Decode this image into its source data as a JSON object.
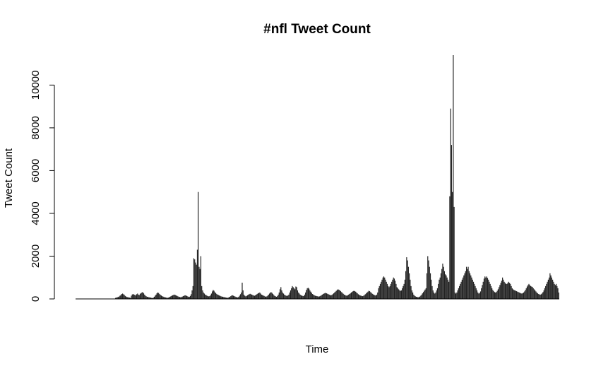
{
  "chart_data": {
    "type": "bar",
    "title": "#nfl Tweet Count",
    "xlabel": "Time",
    "ylabel": "Tweet Count",
    "ylim": [
      0,
      11400
    ],
    "yticks": [
      0,
      2000,
      4000,
      6000,
      8000,
      10000
    ],
    "grid": false,
    "legend": "none",
    "bar_color": "#222222",
    "series": [
      {
        "values": [
          0,
          0,
          0,
          0,
          0,
          0,
          0,
          0,
          0,
          0,
          0,
          0,
          0,
          0,
          0,
          0,
          0,
          0,
          0,
          0,
          0,
          0,
          0,
          0,
          0,
          0,
          0,
          0,
          0,
          0,
          0,
          0,
          0,
          0,
          0,
          0,
          0,
          0,
          0,
          0,
          0,
          0,
          0,
          0,
          0,
          50,
          60,
          80,
          90,
          110,
          150,
          180,
          230,
          250,
          220,
          190,
          140,
          110,
          90,
          80,
          70,
          60,
          50,
          150,
          210,
          230,
          200,
          190,
          160,
          220,
          250,
          200,
          180,
          240,
          270,
          300,
          320,
          260,
          200,
          150,
          120,
          100,
          90,
          80,
          70,
          60,
          50,
          40,
          60,
          100,
          150,
          200,
          260,
          300,
          280,
          230,
          190,
          160,
          130,
          110,
          90,
          80,
          70,
          60,
          50,
          60,
          80,
          100,
          130,
          150,
          170,
          190,
          200,
          180,
          160,
          140,
          120,
          100,
          90,
          80,
          90,
          110,
          130,
          150,
          170,
          160,
          140,
          120,
          100,
          100,
          140,
          220,
          400,
          600,
          1900,
          1850,
          1700,
          1600,
          2300,
          5000,
          1500,
          1400,
          2000,
          600,
          400,
          300,
          250,
          200,
          180,
          150,
          130,
          120,
          130,
          180,
          250,
          350,
          420,
          380,
          320,
          270,
          230,
          200,
          180,
          160,
          140,
          120,
          110,
          100,
          90,
          80,
          70,
          60,
          50,
          60,
          80,
          100,
          130,
          160,
          170,
          150,
          130,
          110,
          90,
          80,
          70,
          100,
          150,
          220,
          300,
          760,
          400,
          200,
          150,
          120,
          140,
          170,
          200,
          220,
          240,
          220,
          200,
          180,
          160,
          150,
          170,
          200,
          230,
          260,
          280,
          300,
          250,
          200,
          180,
          160,
          140,
          120,
          100,
          120,
          150,
          200,
          250,
          300,
          310,
          280,
          230,
          180,
          140,
          120,
          100,
          130,
          200,
          300,
          450,
          550,
          400,
          300,
          250,
          200,
          170,
          150,
          140,
          160,
          200,
          300,
          400,
          500,
          600,
          550,
          500,
          450,
          580,
          550,
          400,
          300,
          250,
          200,
          170,
          150,
          140,
          130,
          200,
          300,
          420,
          500,
          520,
          480,
          400,
          340,
          280,
          230,
          200,
          170,
          150,
          140,
          130,
          120,
          110,
          120,
          140,
          170,
          200,
          230,
          250,
          270,
          280,
          260,
          240,
          220,
          200,
          180,
          170,
          190,
          220,
          260,
          300,
          340,
          380,
          420,
          450,
          430,
          400,
          360,
          320,
          280,
          240,
          200,
          180,
          160,
          150,
          170,
          200,
          230,
          260,
          300,
          330,
          360,
          380,
          360,
          340,
          300,
          260,
          220,
          190,
          170,
          150,
          140,
          130,
          150,
          180,
          220,
          260,
          300,
          340,
          380,
          360,
          320,
          280,
          240,
          210,
          190,
          170,
          160,
          200,
          300,
          500,
          600,
          700,
          800,
          900,
          1000,
          1050,
          1000,
          900,
          800,
          700,
          600,
          550,
          600,
          700,
          800,
          900,
          1000,
          950,
          850,
          700,
          550,
          500,
          450,
          400,
          380,
          400,
          500,
          600,
          700,
          900,
          1300,
          1950,
          1800,
          1500,
          1200,
          900,
          600,
          400,
          300,
          200,
          150,
          120,
          100,
          90,
          80,
          90,
          110,
          150,
          200,
          260,
          320,
          380,
          440,
          500,
          1200,
          2000,
          1800,
          1500,
          1200,
          900,
          600,
          400,
          300,
          250,
          300,
          400,
          500,
          700,
          900,
          1000,
          1200,
          1400,
          1650,
          1500,
          1300,
          1150,
          1100,
          1000,
          900,
          800,
          4800,
          8900,
          7200,
          5000,
          11400,
          4300,
          300,
          250,
          300,
          400,
          500,
          600,
          700,
          800,
          900,
          1000,
          1100,
          1200,
          1300,
          1500,
          1400,
          1500,
          1300,
          1200,
          1100,
          1000,
          900,
          800,
          700,
          600,
          500,
          400,
          300,
          250,
          280,
          350,
          500,
          650,
          800,
          950,
          1050,
          1000,
          1050,
          980,
          900,
          800,
          700,
          600,
          500,
          420,
          360,
          320,
          300,
          320,
          380,
          450,
          550,
          650,
          750,
          850,
          1000,
          900,
          800,
          750,
          700,
          700,
          750,
          800,
          750,
          700,
          600,
          500,
          450,
          420,
          400,
          380,
          360,
          340,
          320,
          300,
          280,
          260,
          250,
          270,
          300,
          350,
          420,
          500,
          580,
          650,
          700,
          650,
          600,
          580,
          560,
          500,
          450,
          400,
          350,
          300,
          260,
          230,
          210,
          200,
          220,
          260,
          320,
          400,
          500,
          600,
          700,
          800,
          900,
          1000,
          1200,
          1100,
          1000,
          900,
          800,
          700,
          650,
          700,
          600,
          500,
          300
        ]
      }
    ]
  }
}
